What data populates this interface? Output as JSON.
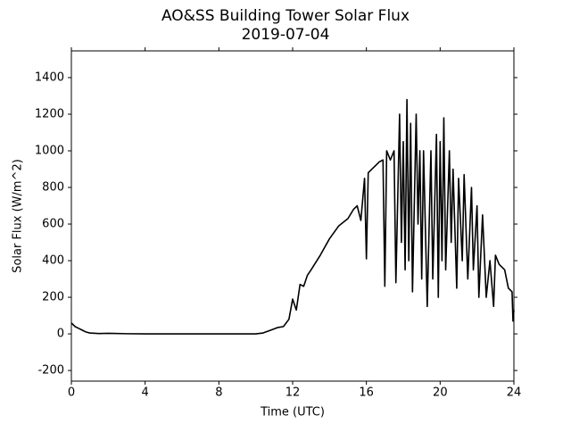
{
  "chart_data": {
    "type": "line",
    "title": "AO&SS Building Tower Solar Flux",
    "subtitle": "2019-07-04",
    "x_label": "Time (UTC)",
    "y_label": "Solar Flux (W/m^2)",
    "color": "#000000",
    "xlim": [
      0,
      24
    ],
    "xticks": [
      0,
      4,
      8,
      12,
      16,
      20,
      24
    ],
    "ylim": [
      -258,
      1546
    ],
    "yticks": [
      -200,
      0,
      200,
      400,
      600,
      800,
      1000,
      1200,
      1400
    ],
    "x": [
      0,
      0.2,
      0.4,
      0.6,
      0.8,
      1.0,
      1.5,
      2,
      3,
      4,
      6,
      8,
      10,
      10.4,
      10.8,
      11.2,
      11.5,
      11.8,
      12.0,
      12.2,
      12.4,
      12.6,
      12.8,
      13,
      13.5,
      14,
      14.5,
      15,
      15.3,
      15.5,
      15.7,
      15.9,
      16,
      16.1,
      16.3,
      16.5,
      16.7,
      16.9,
      17.0,
      17.1,
      17.3,
      17.5,
      17.6,
      17.8,
      17.9,
      18.0,
      18.1,
      18.2,
      18.3,
      18.4,
      18.5,
      18.7,
      18.8,
      18.9,
      19.0,
      19.1,
      19.3,
      19.5,
      19.6,
      19.8,
      19.9,
      20.0,
      20.1,
      20.2,
      20.3,
      20.5,
      20.6,
      20.7,
      20.9,
      21.0,
      21.2,
      21.3,
      21.5,
      21.7,
      21.8,
      22.0,
      22.1,
      22.3,
      22.5,
      22.7,
      22.9,
      23.0,
      23.2,
      23.5,
      23.7,
      23.9,
      23.95,
      24
    ],
    "values": [
      60,
      40,
      30,
      20,
      10,
      5,
      2,
      3,
      1,
      0,
      0,
      0,
      0,
      5,
      20,
      35,
      40,
      80,
      190,
      130,
      270,
      260,
      320,
      350,
      430,
      520,
      590,
      630,
      680,
      700,
      620,
      850,
      410,
      880,
      900,
      920,
      940,
      950,
      260,
      1000,
      950,
      1000,
      280,
      1200,
      500,
      1050,
      350,
      1280,
      400,
      1150,
      230,
      1200,
      600,
      1000,
      300,
      1000,
      150,
      1000,
      300,
      1090,
      200,
      1050,
      400,
      1180,
      350,
      1000,
      500,
      900,
      250,
      850,
      400,
      870,
      300,
      800,
      350,
      700,
      200,
      650,
      200,
      400,
      150,
      430,
      380,
      350,
      250,
      230,
      70,
      130
    ]
  }
}
